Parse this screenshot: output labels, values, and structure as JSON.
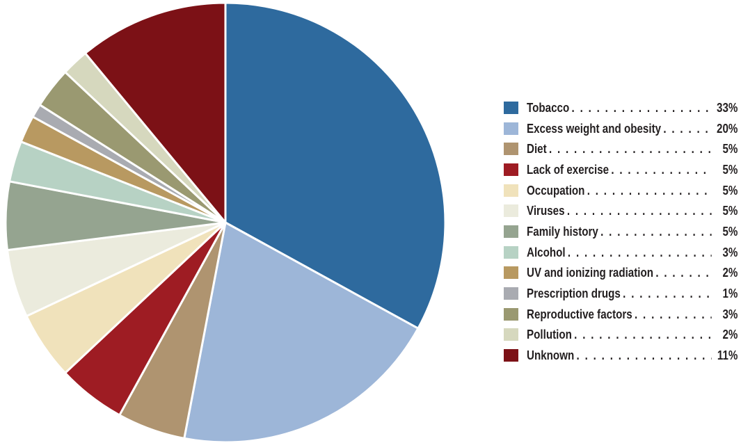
{
  "chart_data": {
    "type": "pie",
    "title": "",
    "slices": [
      {
        "label": "Tobacco",
        "value": 33,
        "value_label": "33%",
        "color": "#2e6a9e"
      },
      {
        "label": "Excess weight and obesity",
        "value": 20,
        "value_label": "20%",
        "color": "#9db6d8"
      },
      {
        "label": "Diet",
        "value": 5,
        "value_label": "5%",
        "color": "#af9470"
      },
      {
        "label": "Lack of exercise",
        "value": 5,
        "value_label": "5%",
        "color": "#9e1c23"
      },
      {
        "label": "Occupation",
        "value": 5,
        "value_label": "5%",
        "color": "#f0e2bb"
      },
      {
        "label": "Viruses",
        "value": 5,
        "value_label": "5%",
        "color": "#ebebdd"
      },
      {
        "label": "Family history",
        "value": 5,
        "value_label": "5%",
        "color": "#95a490"
      },
      {
        "label": "Alcohol",
        "value": 3,
        "value_label": "3%",
        "color": "#b7d2c4"
      },
      {
        "label": "UV and ionizing radiation",
        "value": 2,
        "value_label": "2%",
        "color": "#b89961"
      },
      {
        "label": "Prescription drugs",
        "value": 1,
        "value_label": "1%",
        "color": "#a9abb1"
      },
      {
        "label": "Reproductive factors",
        "value": 3,
        "value_label": "3%",
        "color": "#9a9971"
      },
      {
        "label": "Pollution",
        "value": 2,
        "value_label": "2%",
        "color": "#d6d8be"
      },
      {
        "label": "Unknown",
        "value": 11,
        "value_label": "11%",
        "color": "#7c1116"
      }
    ],
    "start_angle": "top",
    "direction": "clockwise",
    "legend_position": "right"
  }
}
